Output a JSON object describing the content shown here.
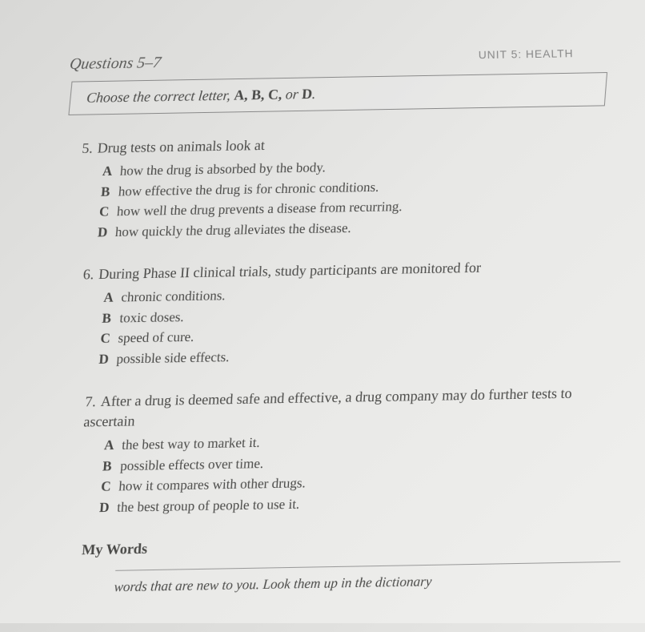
{
  "unit_header": "UNIT 5: HEALTH",
  "questions_label": "Questions 5–7",
  "instruction": {
    "prefix": "Choose the correct letter, ",
    "letters": "A, B, C,",
    "suffix": " or ",
    "last_letter": "D",
    "period": "."
  },
  "questions": [
    {
      "number": "5.",
      "stem": "Drug tests on animals look at",
      "options": [
        {
          "letter": "A",
          "text": "how the drug is absorbed by the body."
        },
        {
          "letter": "B",
          "text": "how effective the drug is for chronic conditions."
        },
        {
          "letter": "C",
          "text": "how well the drug prevents a disease from recurring."
        },
        {
          "letter": "D",
          "text": "how quickly the drug alleviates the disease."
        }
      ]
    },
    {
      "number": "6.",
      "stem": "During Phase II clinical trials, study participants are monitored for",
      "options": [
        {
          "letter": "A",
          "text": "chronic conditions."
        },
        {
          "letter": "B",
          "text": "toxic doses."
        },
        {
          "letter": "C",
          "text": "speed of cure."
        },
        {
          "letter": "D",
          "text": "possible side effects."
        }
      ]
    },
    {
      "number": "7.",
      "stem": "After a drug is deemed safe and effective, a drug company may do further tests to ascertain",
      "options": [
        {
          "letter": "A",
          "text": "the best way to market it."
        },
        {
          "letter": "B",
          "text": "possible effects over time."
        },
        {
          "letter": "C",
          "text": "how it compares with other drugs."
        },
        {
          "letter": "D",
          "text": "the best group of people to use it."
        }
      ]
    }
  ],
  "my_words_heading": "My Words",
  "bottom_text": "words that are new to you. Look them up in the dictionary",
  "colors": {
    "text": "#4a4a48",
    "border": "#888888",
    "bg_light": "#f0f0ee",
    "bg_dark": "#d8d8d6"
  },
  "typography": {
    "body_fontsize": 18,
    "option_fontsize": 17,
    "heading_fontsize": 20
  }
}
